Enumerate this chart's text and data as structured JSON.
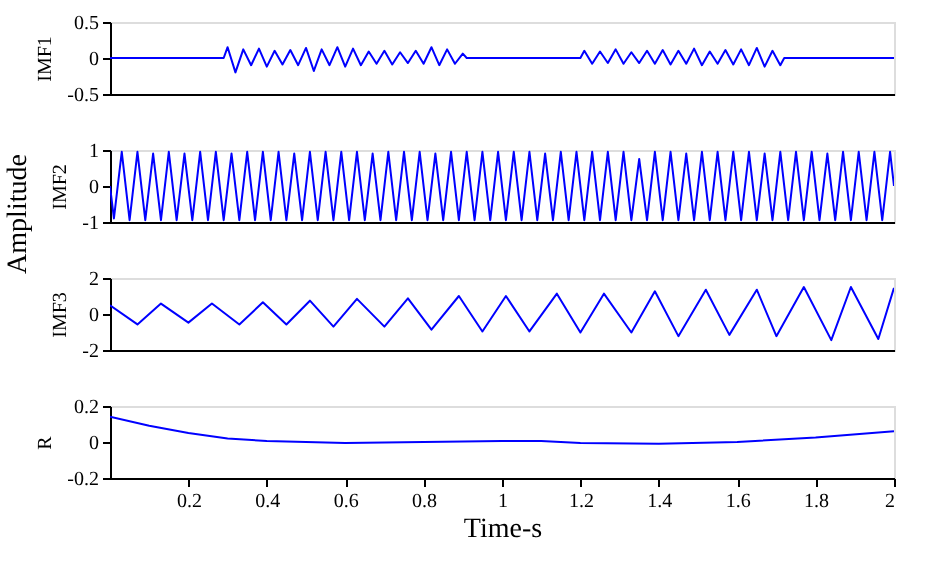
{
  "chart_data": [
    {
      "type": "line",
      "ylabel": "IMF1",
      "xlim": [
        0,
        2
      ],
      "ylim": [
        -0.5,
        0.5
      ],
      "yticks": [
        -0.5,
        0,
        0.5
      ],
      "tick_labels": "y",
      "grid": false,
      "series": [
        {
          "color": "#0000ff",
          "x": [
            0,
            0.29,
            0.3,
            0.32,
            0.34,
            0.36,
            0.38,
            0.4,
            0.42,
            0.44,
            0.46,
            0.48,
            0.5,
            0.52,
            0.54,
            0.56,
            0.58,
            0.6,
            0.62,
            0.64,
            0.66,
            0.68,
            0.7,
            0.72,
            0.74,
            0.76,
            0.78,
            0.8,
            0.82,
            0.84,
            0.86,
            0.88,
            0.9,
            0.91,
            1.2,
            1.21,
            1.23,
            1.25,
            1.27,
            1.29,
            1.31,
            1.33,
            1.35,
            1.37,
            1.39,
            1.41,
            1.43,
            1.45,
            1.47,
            1.49,
            1.51,
            1.53,
            1.55,
            1.57,
            1.59,
            1.61,
            1.63,
            1.65,
            1.67,
            1.69,
            1.71,
            1.72,
            2
          ],
          "values": [
            0,
            0,
            0.15,
            -0.2,
            0.12,
            -0.1,
            0.13,
            -0.12,
            0.1,
            -0.09,
            0.11,
            -0.1,
            0.14,
            -0.18,
            0.12,
            -0.1,
            0.15,
            -0.12,
            0.13,
            -0.1,
            0.09,
            -0.08,
            0.1,
            -0.09,
            0.08,
            -0.07,
            0.1,
            -0.08,
            0.15,
            -0.1,
            0.12,
            -0.08,
            0.06,
            0,
            0,
            0.1,
            -0.08,
            0.09,
            -0.07,
            0.12,
            -0.08,
            0.08,
            -0.07,
            0.1,
            -0.08,
            0.11,
            -0.09,
            0.1,
            -0.08,
            0.13,
            -0.1,
            0.09,
            -0.08,
            0.11,
            -0.09,
            0.12,
            -0.1,
            0.14,
            -0.12,
            0.1,
            -0.1,
            0,
            0
          ]
        }
      ]
    },
    {
      "type": "line",
      "ylabel": "IMF2",
      "annotations": [
        "Amplitude"
      ],
      "xlim": [
        0,
        2
      ],
      "ylim": [
        -1,
        1
      ],
      "yticks": [
        -1,
        0,
        1
      ],
      "tick_labels": "y",
      "grid": false,
      "series": [
        {
          "color": "#0000ff",
          "x": [
            0,
            0.01,
            0.03,
            0.05,
            0.07,
            0.09,
            0.11,
            0.13,
            0.15,
            0.17,
            0.19,
            0.21,
            0.23,
            0.25,
            0.27,
            0.29,
            0.31,
            0.33,
            0.35,
            0.37,
            0.39,
            0.41,
            0.43,
            0.45,
            0.47,
            0.49,
            0.51,
            0.53,
            0.55,
            0.57,
            0.59,
            0.61,
            0.63,
            0.65,
            0.67,
            0.69,
            0.71,
            0.73,
            0.75,
            0.77,
            0.79,
            0.81,
            0.83,
            0.85,
            0.87,
            0.89,
            0.91,
            0.93,
            0.95,
            0.97,
            0.99,
            1.01,
            1.03,
            1.05,
            1.07,
            1.09,
            1.11,
            1.13,
            1.15,
            1.17,
            1.19,
            1.21,
            1.23,
            1.25,
            1.27,
            1.29,
            1.31,
            1.33,
            1.35,
            1.37,
            1.39,
            1.41,
            1.43,
            1.45,
            1.47,
            1.49,
            1.51,
            1.53,
            1.55,
            1.57,
            1.59,
            1.61,
            1.63,
            1.65,
            1.67,
            1.69,
            1.71,
            1.73,
            1.75,
            1.77,
            1.79,
            1.81,
            1.83,
            1.85,
            1.87,
            1.89,
            1.91,
            1.93,
            1.95,
            1.97,
            1.99,
            2
          ],
          "values": [
            0,
            -0.9,
            0.95,
            -0.95,
            0.95,
            -0.95,
            0.9,
            -0.95,
            0.95,
            -0.95,
            0.9,
            -0.95,
            0.95,
            -0.95,
            0.95,
            -0.95,
            0.9,
            -0.95,
            0.95,
            -0.95,
            0.95,
            -0.95,
            0.95,
            -0.95,
            0.9,
            -0.95,
            0.95,
            -0.95,
            0.95,
            -0.95,
            0.95,
            -0.95,
            0.95,
            -0.95,
            0.9,
            -0.95,
            0.95,
            -0.95,
            0.95,
            -0.95,
            0.95,
            -0.95,
            0.9,
            -0.95,
            0.95,
            -0.95,
            0.95,
            -0.95,
            0.95,
            -0.95,
            0.95,
            -0.95,
            0.95,
            -0.95,
            0.95,
            -0.95,
            0.9,
            -0.95,
            0.95,
            -0.95,
            0.95,
            -0.95,
            0.95,
            -0.95,
            0.95,
            -0.95,
            0.95,
            -0.95,
            0.75,
            -0.95,
            0.95,
            -0.95,
            0.95,
            -0.95,
            0.9,
            -0.95,
            0.95,
            -0.95,
            0.95,
            -0.95,
            0.95,
            -0.95,
            0.95,
            -0.95,
            0.9,
            -0.95,
            0.95,
            -0.95,
            0.95,
            -0.95,
            0.95,
            -0.95,
            0.9,
            -0.95,
            0.95,
            -0.95,
            0.95,
            -0.95,
            0.95,
            -0.95,
            0.95,
            0
          ]
        }
      ]
    },
    {
      "type": "line",
      "ylabel": "IMF3",
      "xlim": [
        0,
        2
      ],
      "ylim": [
        -2,
        2
      ],
      "yticks": [
        -2,
        0,
        2
      ],
      "tick_labels": "y",
      "grid": false,
      "series": [
        {
          "color": "#0000ff",
          "x": [
            0,
            0.07,
            0.13,
            0.2,
            0.26,
            0.33,
            0.39,
            0.45,
            0.51,
            0.57,
            0.63,
            0.7,
            0.76,
            0.82,
            0.89,
            0.95,
            1.01,
            1.07,
            1.14,
            1.2,
            1.26,
            1.33,
            1.39,
            1.45,
            1.52,
            1.58,
            1.65,
            1.7,
            1.77,
            1.84,
            1.89,
            1.96,
            2
          ],
          "values": [
            0.48,
            -0.58,
            0.58,
            -0.48,
            0.58,
            -0.58,
            0.65,
            -0.58,
            0.74,
            -0.7,
            0.84,
            -0.7,
            0.87,
            -0.87,
            1.0,
            -0.97,
            1.0,
            -0.97,
            1.13,
            -1.03,
            1.13,
            -1.03,
            1.26,
            -1.23,
            1.35,
            -1.16,
            1.35,
            -1.23,
            1.5,
            -1.45,
            1.5,
            -1.39,
            1.45
          ]
        }
      ]
    },
    {
      "type": "line",
      "ylabel": "R",
      "xlabel": "Time-s",
      "xlim": [
        0,
        2
      ],
      "xticks": [
        0.2,
        0.4,
        0.6,
        0.8,
        1,
        1.2,
        1.4,
        1.6,
        1.8,
        2
      ],
      "ylim": [
        -0.2,
        0.2
      ],
      "yticks": [
        -0.2,
        0,
        0.2
      ],
      "grid": false,
      "series": [
        {
          "color": "#0000ff",
          "x": [
            0,
            0.1,
            0.2,
            0.3,
            0.4,
            0.6,
            0.8,
            1.0,
            1.1,
            1.2,
            1.4,
            1.6,
            1.8,
            2
          ],
          "values": [
            0.14,
            0.09,
            0.05,
            0.02,
            0.005,
            -0.005,
            0,
            0.005,
            0.005,
            -0.005,
            -0.01,
            0,
            0.025,
            0.06
          ]
        }
      ]
    }
  ]
}
